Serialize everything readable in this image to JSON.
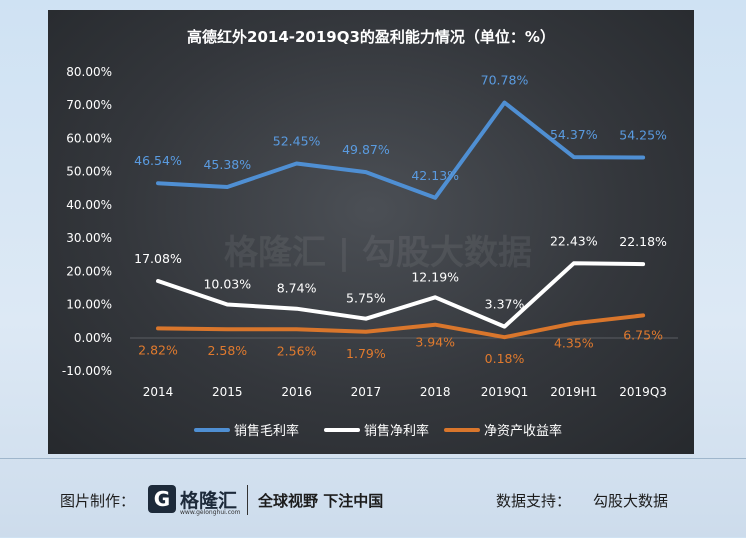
{
  "chart_data": {
    "type": "line",
    "title": "高德红外2014-2019Q3的盈利能力情况（单位：%）",
    "categories": [
      "2014",
      "2015",
      "2016",
      "2017",
      "2018",
      "2019Q1",
      "2019H1",
      "2019Q3"
    ],
    "y_ticks": [
      "80.00%",
      "70.00%",
      "60.00%",
      "50.00%",
      "40.00%",
      "30.00%",
      "20.00%",
      "10.00%",
      "0.00%",
      "-10.00%"
    ],
    "ylim": [
      -10,
      80
    ],
    "grid": false,
    "legend_position": "bottom",
    "watermark": "格隆汇 | 勾股大数据",
    "series": [
      {
        "name": "销售毛利率",
        "color": "#4f8fd3",
        "label_color": "#5a9be0",
        "values": [
          46.54,
          45.38,
          52.45,
          49.87,
          42.13,
          70.78,
          54.37,
          54.25
        ],
        "labels": [
          "46.54%",
          "45.38%",
          "52.45%",
          "49.87%",
          "42.13%",
          "70.78%",
          "54.37%",
          "54.25%"
        ]
      },
      {
        "name": "销售净利率",
        "color": "#ffffff",
        "label_color": "#ffffff",
        "values": [
          17.08,
          10.03,
          8.74,
          5.75,
          12.19,
          3.37,
          22.43,
          22.18
        ],
        "labels": [
          "17.08%",
          "10.03%",
          "8.74%",
          "5.75%",
          "12.19%",
          "3.37%",
          "22.43%",
          "22.18%"
        ]
      },
      {
        "name": "净资产收益率",
        "color": "#d9762c",
        "label_color": "#e07a2e",
        "values": [
          2.82,
          2.58,
          2.56,
          1.79,
          3.94,
          0.18,
          4.35,
          6.75
        ],
        "labels": [
          "2.82%",
          "2.58%",
          "2.56%",
          "1.79%",
          "3.94%",
          "0.18%",
          "4.35%",
          "6.75%"
        ]
      }
    ]
  },
  "footer": {
    "credit_label": "图片制作：",
    "brand_mark": "G",
    "brand_name": "格隆汇",
    "brand_url": "www.gelonghui.com",
    "slogan": "全球视野 下注中国",
    "source_label": "数据支持：",
    "source_name": "勾股大数据"
  }
}
